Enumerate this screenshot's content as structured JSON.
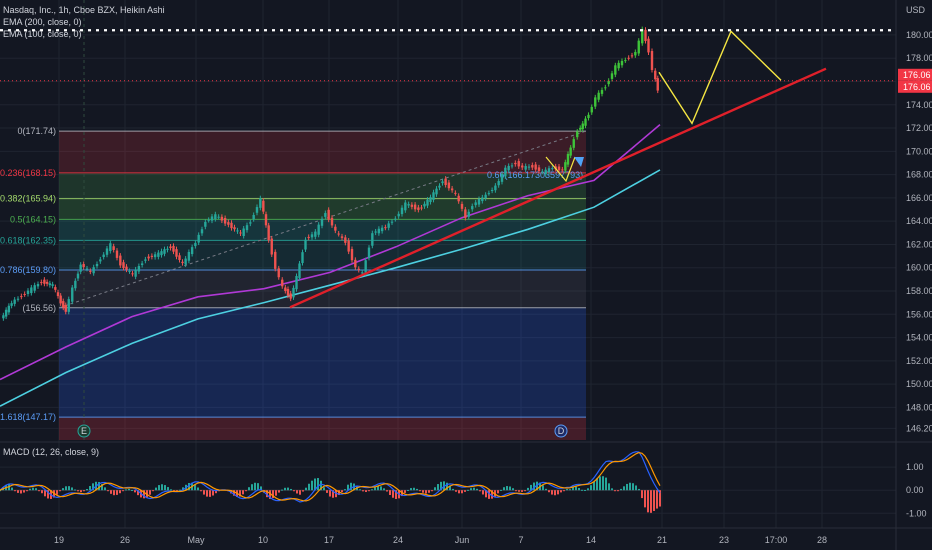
{
  "header": {
    "symbol_line": "Nasdaq, Inc., 1h, Cboe BZX, Heikin Ashi",
    "ema200_label": "EMA (200, close, 0)",
    "ema100_label": "EMA (100, close, 0)",
    "currency": "USD"
  },
  "macd_label": "MACD (12, 26, close, 9)",
  "colors": {
    "background": "#131722",
    "candle_up": "#26a69a",
    "candle_up_bright": "#3ec43a",
    "candle_down": "#ef5350",
    "ema200": "#4dd0e1",
    "ema100": "#b039d6",
    "trendline": "#e0202a",
    "projection": "#f5e642",
    "price_tag": "#f23645"
  },
  "chart_data": {
    "type": "candlestick",
    "chart_style": "Heikin Ashi",
    "interval": "1h",
    "x_labels": [
      "19",
      "26",
      "May",
      "10",
      "17",
      "24",
      "Jun",
      "7",
      "14",
      "21",
      "23",
      "17:00",
      "28"
    ],
    "y_ticks": [
      146.2,
      148.0,
      150.0,
      152.0,
      154.0,
      156.0,
      158.0,
      160.0,
      162.0,
      164.0,
      166.0,
      168.0,
      170.0,
      172.0,
      174.0,
      176.0,
      178.0,
      180.0
    ],
    "y_tick_labels": [
      "146.20",
      "148.00",
      "150.00",
      "152.00",
      "154.00",
      "156.00",
      "158.00",
      "160.00",
      "162.00",
      "164.00",
      "166.00",
      "168.00",
      "170.00",
      "172.00",
      "174.00",
      "176.00",
      "178.00",
      "180.00"
    ],
    "ylim": [
      145.2,
      183.0
    ],
    "current_price_labels": [
      "176.06",
      "176.06"
    ],
    "current_price": 176.06,
    "resistance_level": 180.4,
    "fibonacci": {
      "levels": [
        {
          "ratio": "0",
          "label": "0(171.74)",
          "price": 171.74,
          "color": "#b2b5be"
        },
        {
          "ratio": "0.236",
          "label": "0.236(168.15)",
          "price": 168.15,
          "color": "#f23645"
        },
        {
          "ratio": "0.382",
          "label": "0.382(165.94)",
          "price": 165.94,
          "color": "#a3d96b"
        },
        {
          "ratio": "0.5",
          "label": "0.5(164.15)",
          "price": 164.15,
          "color": "#4caf50"
        },
        {
          "ratio": "0.618",
          "label": "0.618(162.35)",
          "price": 162.35,
          "color": "#26a69a"
        },
        {
          "ratio": "0.786",
          "label": "0.786(159.80)",
          "price": 159.8,
          "color": "#5b9cf6"
        },
        {
          "ratio": "1",
          "label": "(156.56)",
          "price": 156.56,
          "color": "#b2b5be"
        },
        {
          "ratio": "1.618",
          "label": "1.618(147.17)",
          "price": 147.17,
          "color": "#5b9cf6"
        }
      ],
      "annotation": "0.66(166.17303597793)",
      "markers": [
        "E",
        "D"
      ]
    },
    "series": [
      {
        "name": "EMA (200, close, 0)",
        "kind": "line",
        "values": [
          148.1,
          151.0,
          153.5,
          155.6,
          157.0,
          158.5,
          160.0,
          161.6,
          163.3,
          165.2,
          168.4
        ]
      },
      {
        "name": "EMA (100, close, 0)",
        "kind": "line",
        "values": [
          150.4,
          153.2,
          155.8,
          157.5,
          158.2,
          159.6,
          161.8,
          164.3,
          166.2,
          167.5,
          172.3
        ]
      },
      {
        "name": "Heikin Ashi close",
        "kind": "candles",
        "x": [
          0,
          11,
          21,
          31,
          41,
          52,
          60,
          65,
          72,
          80,
          90,
          100,
          110,
          120,
          132,
          145,
          158,
          170,
          182,
          195,
          205,
          215,
          228,
          240,
          250,
          260,
          268,
          275,
          282,
          290,
          296,
          305,
          315,
          325,
          335,
          345,
          355,
          362,
          372,
          385,
          395,
          405,
          418,
          430,
          442,
          455,
          465,
          472,
          482,
          495,
          505,
          515,
          522,
          532,
          542,
          552,
          562,
          570,
          577,
          582,
          588,
          595,
          605,
          615,
          625,
          635,
          642,
          648,
          652,
          657
        ],
        "values": [
          155.6,
          157.0,
          157.6,
          158.2,
          158.8,
          158.5,
          157.0,
          156.3,
          158.2,
          160.3,
          159.6,
          160.8,
          162.0,
          160.3,
          159.4,
          160.8,
          161.2,
          161.8,
          160.3,
          162.2,
          164.0,
          164.5,
          163.7,
          162.9,
          164.0,
          165.9,
          162.4,
          160.0,
          158.3,
          157.4,
          159.2,
          162.5,
          163.0,
          164.8,
          163.1,
          162.2,
          160.0,
          159.5,
          163.0,
          163.5,
          164.3,
          165.5,
          165.0,
          166.0,
          167.5,
          166.3,
          164.3,
          165.4,
          166.0,
          167.0,
          168.5,
          169.0,
          168.6,
          168.7,
          168.2,
          168.6,
          168.4,
          170.3,
          171.8,
          172.3,
          173.2,
          174.6,
          175.6,
          177.3,
          177.9,
          178.5,
          180.4,
          178.6,
          177.0,
          175.3
        ]
      }
    ],
    "trendline": {
      "from": 156.6,
      "to": 177.1
    },
    "projection": [
      176.8,
      172.4,
      180.3,
      176.1
    ],
    "macd": {
      "y_ticks": [
        1.0,
        0.0,
        -1.0
      ],
      "y_tick_labels": [
        "1.00",
        "0.00",
        "-1.00"
      ],
      "ylim": [
        -1.55,
        2.0
      ]
    }
  }
}
